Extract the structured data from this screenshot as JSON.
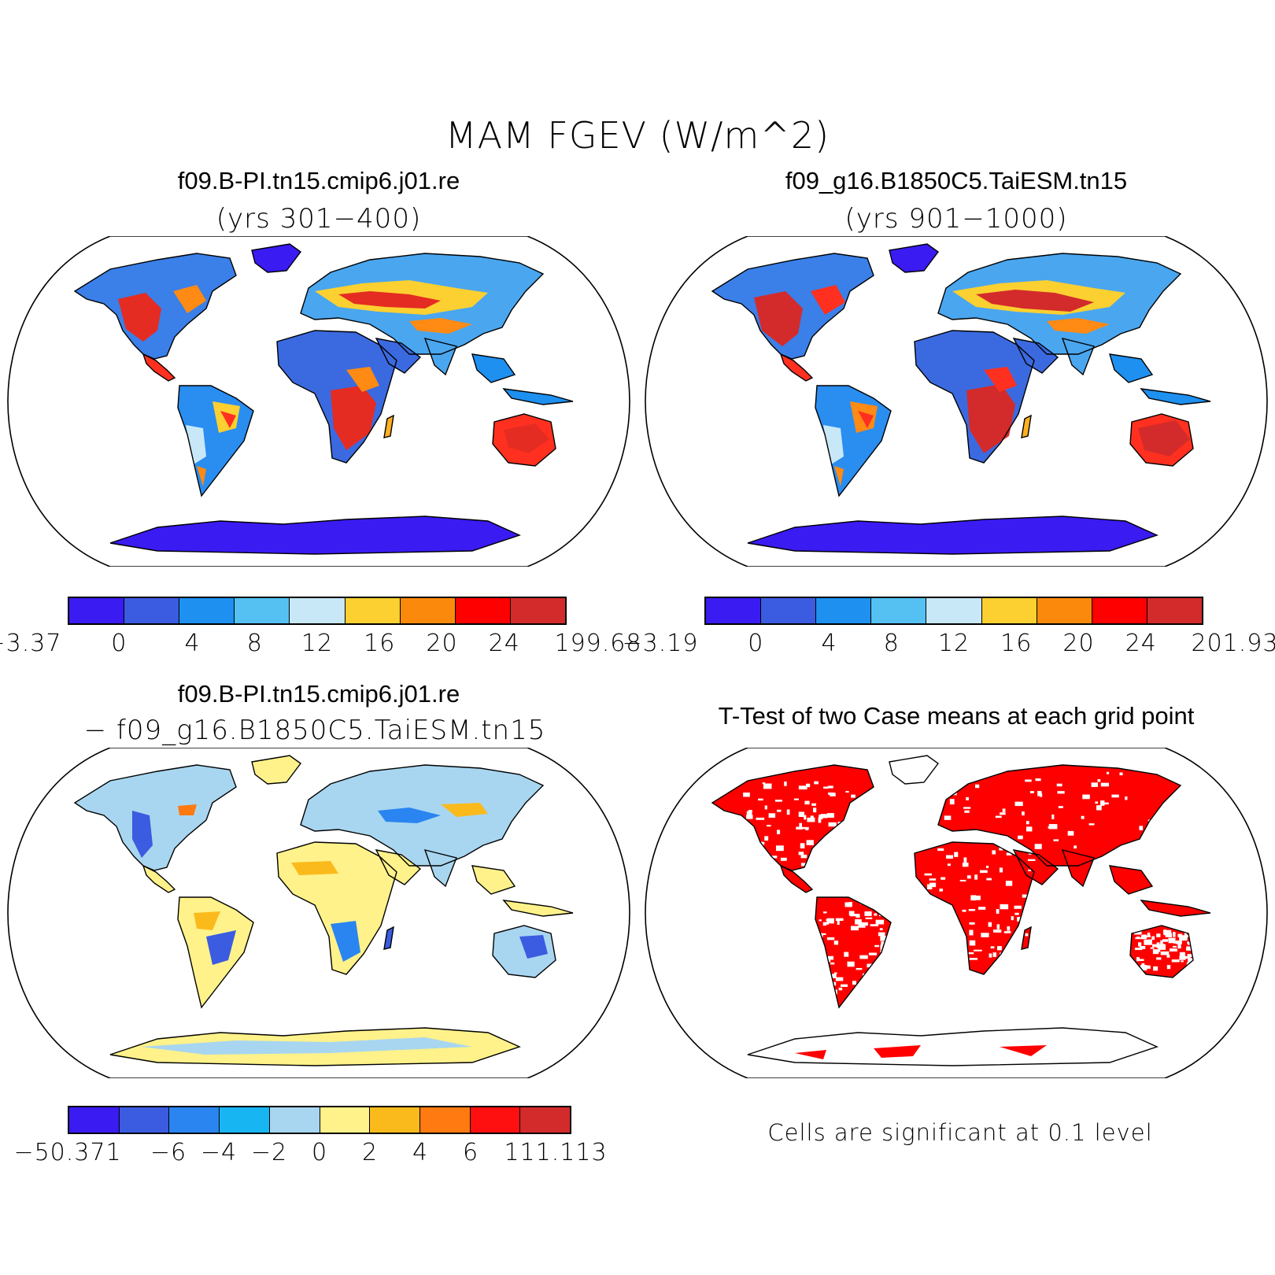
{
  "title": "MAM FGEV (W/m^2)",
  "panels": [
    {
      "id": "case1",
      "title": "f09.B-PI.tn15.cmip6.j01.re",
      "subtitle": "(yrs 301−400)",
      "colorbar": {
        "colors": [
          "#3a1bf2",
          "#3b5ce0",
          "#1e90f0",
          "#55c1f2",
          "#c8e8f8",
          "#fbd030",
          "#fb8a0c",
          "#ff0000",
          "#d32b2b"
        ],
        "labels": [
          "−3.37",
          "0",
          "4",
          "8",
          "12",
          "16",
          "20",
          "24",
          "199.68"
        ]
      }
    },
    {
      "id": "case2",
      "title": "f09_g16.B1850C5.TaiESM.tn15",
      "subtitle": "(yrs 901−1000)",
      "colorbar": {
        "colors": [
          "#3a1bf2",
          "#3b5ce0",
          "#1e90f0",
          "#55c1f2",
          "#c8e8f8",
          "#fbd030",
          "#fb8a0c",
          "#ff0000",
          "#d32b2b"
        ],
        "labels": [
          "−3.19",
          "0",
          "4",
          "8",
          "12",
          "16",
          "20",
          "24",
          "201.93"
        ]
      }
    },
    {
      "id": "diff",
      "title": "f09.B-PI.tn15.cmip6.j01.re",
      "subtitle": "− f09_g16.B1850C5.TaiESM.tn15",
      "colorbar": {
        "colors": [
          "#3a1bf2",
          "#3b5ce0",
          "#2a85f0",
          "#17b6f2",
          "#a8d6f0",
          "#fff28a",
          "#fbba1c",
          "#ff7a10",
          "#ff1010",
          "#d32b2b"
        ],
        "labels": [
          "−50.371",
          "−6",
          "−4",
          "−2",
          "0",
          "2",
          "4",
          "6",
          "111.113"
        ]
      }
    },
    {
      "id": "ttest",
      "title": "T-Test of two Case means at each grid point",
      "note": "Cells are significant at 0.1 level",
      "fill_color": "#ff0000"
    }
  ]
}
